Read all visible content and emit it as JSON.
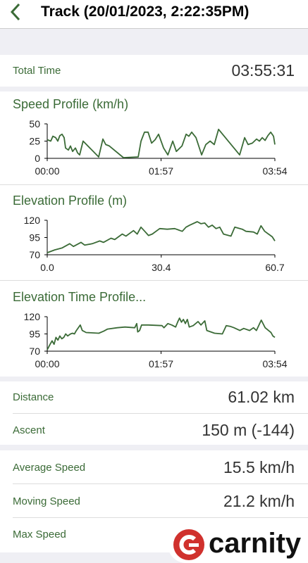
{
  "header": {
    "title": "Track (20/01/2023, 2:22:35PM)"
  },
  "summary": {
    "label": "Total Time",
    "value": "03:55:31"
  },
  "chart_data": [
    {
      "type": "line",
      "title": "Speed Profile (km/h)",
      "color": "#3b6b37",
      "x": [
        0,
        3.6,
        5.8,
        8.7,
        10.9,
        13,
        15.2,
        17.4,
        18.8,
        21.7,
        23.9,
        26.1,
        29,
        31.2,
        33.3,
        36.9,
        52.9,
        57.2,
        60.1,
        63.8,
        78.3,
        93.5,
        96.4,
        100,
        103.7,
        107.3,
        110.9,
        114.5,
        119.6,
        124,
        129,
        132.7,
        138.5,
        142.8,
        145.6,
        148.5,
        152.9,
        158.7,
        163,
        167.4,
        171.7,
        176.1,
        197.8,
        202.9,
        206.5,
        210.8,
        215.2,
        218.1,
        221,
        223.9,
        226.8,
        229.7,
        232.6,
        234
      ],
      "values": [
        27,
        25,
        32,
        30,
        25,
        33,
        35,
        30,
        15,
        12,
        18,
        10,
        15,
        8,
        5,
        25,
        2,
        28,
        20,
        18,
        1,
        2,
        25,
        38,
        38,
        22,
        27,
        35,
        15,
        5,
        25,
        10,
        18,
        35,
        32,
        38,
        30,
        5,
        20,
        25,
        20,
        42,
        5,
        30,
        20,
        22,
        28,
        25,
        30,
        26,
        33,
        38,
        32,
        20
      ],
      "xlim": [
        0,
        234
      ],
      "xticks": [
        {
          "value": 0,
          "label": "00:00"
        },
        {
          "value": 117,
          "label": "01:57"
        },
        {
          "value": 234,
          "label": "03:54"
        }
      ],
      "ylim": [
        0,
        50
      ],
      "yticks": [
        0,
        25,
        50
      ]
    },
    {
      "type": "line",
      "title": "Elevation Profile (m)",
      "color": "#3b6b37",
      "x": [
        0,
        2,
        4,
        6,
        7,
        9,
        10,
        12,
        14,
        15,
        17,
        18,
        20,
        21,
        23,
        24,
        25,
        26,
        27,
        28,
        30,
        32,
        34,
        36,
        37,
        38,
        40,
        41,
        42,
        43,
        44,
        45,
        46,
        47,
        49,
        50,
        52,
        53,
        55,
        56,
        57,
        58,
        60,
        60.7
      ],
      "values": [
        73,
        77,
        80,
        86,
        82,
        88,
        84,
        86,
        90,
        88,
        94,
        92,
        100,
        97,
        105,
        100,
        110,
        104,
        98,
        100,
        108,
        107,
        108,
        104,
        110,
        113,
        118,
        115,
        116,
        110,
        113,
        108,
        110,
        100,
        97,
        110,
        107,
        104,
        103,
        100,
        112,
        104,
        96,
        90
      ],
      "xlim": [
        0,
        60.7
      ],
      "xticks": [
        {
          "value": 0,
          "label": "0.0"
        },
        30.4,
        60.7
      ],
      "ylim": [
        70,
        120
      ],
      "yticks": [
        70,
        95,
        120
      ]
    },
    {
      "type": "line",
      "title": "Elevation Time Profile...",
      "color": "#3b6b37",
      "x": [
        0,
        3,
        5,
        7,
        9,
        11,
        13,
        15,
        17,
        19,
        21,
        24,
        26,
        28,
        30,
        34,
        36,
        40,
        53,
        58,
        62,
        72,
        80,
        90,
        92,
        93,
        95,
        97,
        100,
        104,
        118,
        120,
        124,
        128,
        132,
        134,
        136,
        138,
        140,
        142,
        144,
        146,
        150,
        155,
        158,
        162,
        164,
        172,
        180,
        184,
        188,
        192,
        198,
        202,
        208,
        212,
        215,
        220,
        224,
        230,
        232,
        234
      ],
      "values": [
        72,
        80,
        85,
        80,
        90,
        86,
        92,
        88,
        90,
        95,
        92,
        95,
        96,
        95,
        100,
        108,
        100,
        97,
        96,
        99,
        102,
        104,
        105,
        104,
        110,
        98,
        100,
        108,
        108,
        108,
        107,
        104,
        110,
        108,
        105,
        112,
        118,
        112,
        116,
        110,
        116,
        105,
        107,
        113,
        108,
        114,
        100,
        96,
        95,
        107,
        106,
        104,
        100,
        103,
        100,
        104,
        100,
        115,
        104,
        97,
        92,
        90
      ],
      "xlim": [
        0,
        234
      ],
      "xticks": [
        {
          "value": 0,
          "label": "00:00"
        },
        {
          "value": 117,
          "label": "01:57"
        },
        {
          "value": 234,
          "label": "03:54"
        }
      ],
      "ylim": [
        70,
        120
      ],
      "yticks": [
        70,
        95,
        120
      ]
    }
  ],
  "stats": [
    {
      "label": "Distance",
      "value": "61.02 km"
    },
    {
      "label": "Ascent",
      "value": "150 m (-144)"
    }
  ],
  "speeds": [
    {
      "label": "Average Speed",
      "value": "15.5 km/h"
    },
    {
      "label": "Moving Speed",
      "value": "21.2 km/h"
    },
    {
      "label": "Max Speed"
    }
  ],
  "watermark": "carnity"
}
